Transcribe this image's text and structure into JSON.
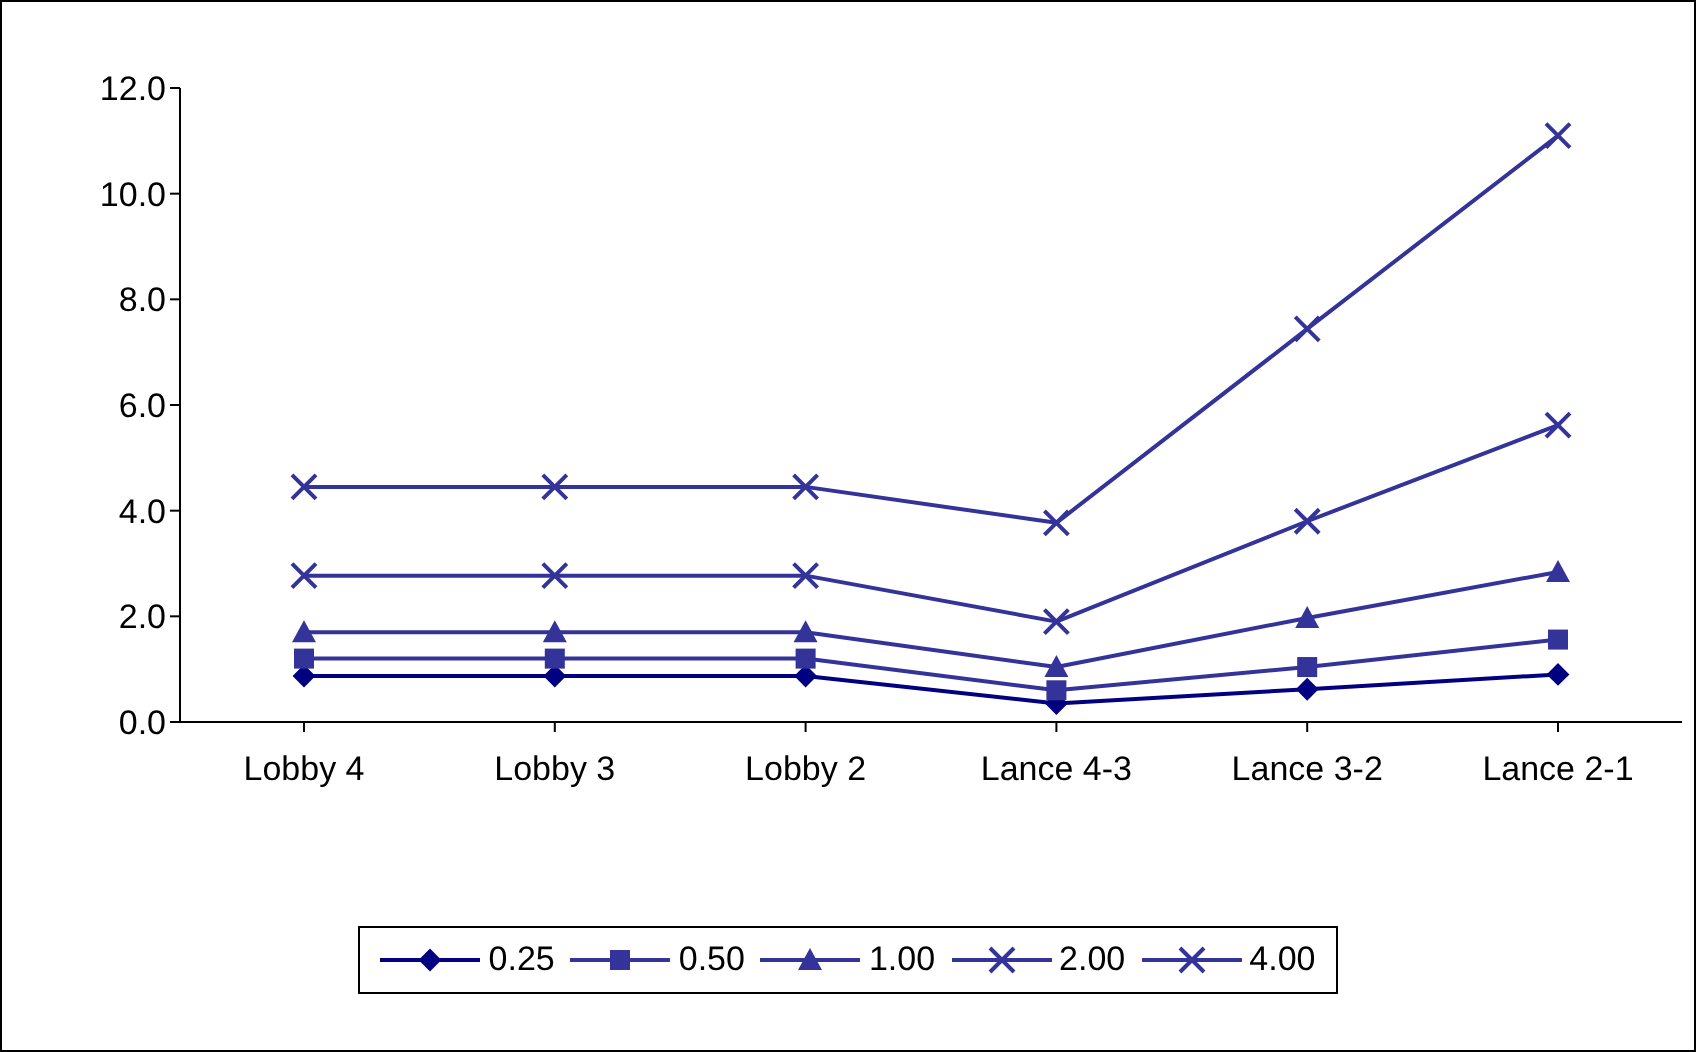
{
  "chart_data": {
    "type": "line",
    "categories": [
      "Lobby 4",
      "Lobby 3",
      "Lobby 2",
      "Lance 4-3",
      "Lance 3-2",
      "Lance 2-1"
    ],
    "series": [
      {
        "name": "0.25",
        "color": "#000080",
        "marker": "diamond",
        "values": [
          0.87,
          0.87,
          0.87,
          0.35,
          0.62,
          0.9
        ]
      },
      {
        "name": "0.50",
        "color": "#333399",
        "marker": "square",
        "values": [
          1.2,
          1.2,
          1.2,
          0.6,
          1.04,
          1.56
        ]
      },
      {
        "name": "1.00",
        "color": "#333399",
        "marker": "triangle",
        "values": [
          1.7,
          1.7,
          1.7,
          1.04,
          1.97,
          2.84
        ]
      },
      {
        "name": "2.00",
        "color": "#333399",
        "marker": "cross",
        "values": [
          2.77,
          2.77,
          2.77,
          1.9,
          3.8,
          5.62
        ]
      },
      {
        "name": "4.00",
        "color": "#333399",
        "marker": "cross",
        "values": [
          4.45,
          4.45,
          4.45,
          3.77,
          7.44,
          11.1
        ]
      }
    ],
    "ylim": [
      0,
      12
    ],
    "yticks": [
      {
        "value": 0,
        "label": "0.0"
      },
      {
        "value": 2,
        "label": "2.0"
      },
      {
        "value": 4,
        "label": "4.0"
      },
      {
        "value": 6,
        "label": "6.0"
      },
      {
        "value": 8,
        "label": "8.0"
      },
      {
        "value": 10,
        "label": "10.0"
      },
      {
        "value": 12,
        "label": "12.0"
      }
    ],
    "grid": false,
    "legend": "bottom",
    "line_style": "solid"
  }
}
